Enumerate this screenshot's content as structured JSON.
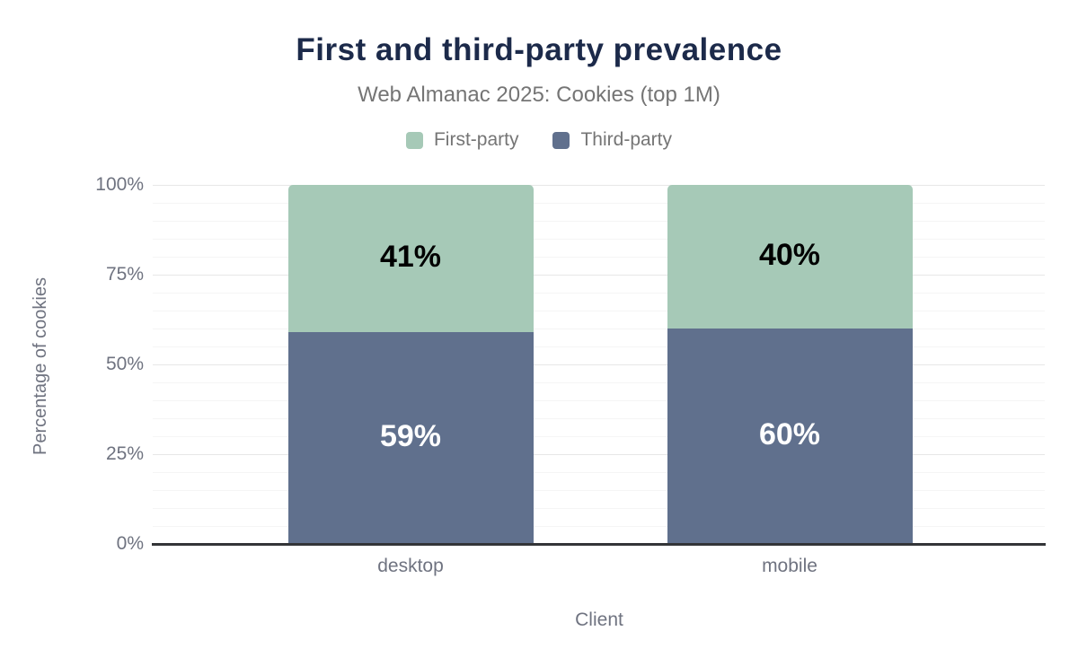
{
  "header": {
    "title": "First and third-party prevalence",
    "subtitle": "Web Almanac 2025: Cookies (top 1M)"
  },
  "legend": {
    "items": [
      {
        "label": "First-party",
        "color": "#a6c9b7"
      },
      {
        "label": "Third-party",
        "color": "#60708d"
      }
    ]
  },
  "chart_data": {
    "type": "bar",
    "stacked": true,
    "title": "First and third-party prevalence",
    "subtitle": "Web Almanac 2025: Cookies (top 1M)",
    "categories": [
      "desktop",
      "mobile"
    ],
    "series": [
      {
        "name": "Third-party",
        "values": [
          59,
          60
        ],
        "color": "#60708d",
        "label_color": "#ffffff"
      },
      {
        "name": "First-party",
        "values": [
          41,
          40
        ],
        "color": "#a6c9b7",
        "label_color": "#000000"
      }
    ],
    "unit": "%",
    "xlabel": "Client",
    "ylabel": "Percentage of cookies",
    "ylim": [
      0,
      100
    ],
    "yticks": [
      0,
      25,
      50,
      75,
      100
    ],
    "ytick_labels": [
      "0%",
      "25%",
      "50%",
      "75%",
      "100%"
    ],
    "minor_grid_step": 5,
    "major_grid_step": 25,
    "grid": true,
    "legend_position": "top"
  },
  "colors": {
    "title": "#1c2a4a",
    "subtitle": "#757575",
    "axis_text": "#6f7380",
    "axis_line": "#333538",
    "grid_major": "#e7e7e7",
    "grid_minor": "#f5f5f5",
    "background": "#ffffff"
  }
}
